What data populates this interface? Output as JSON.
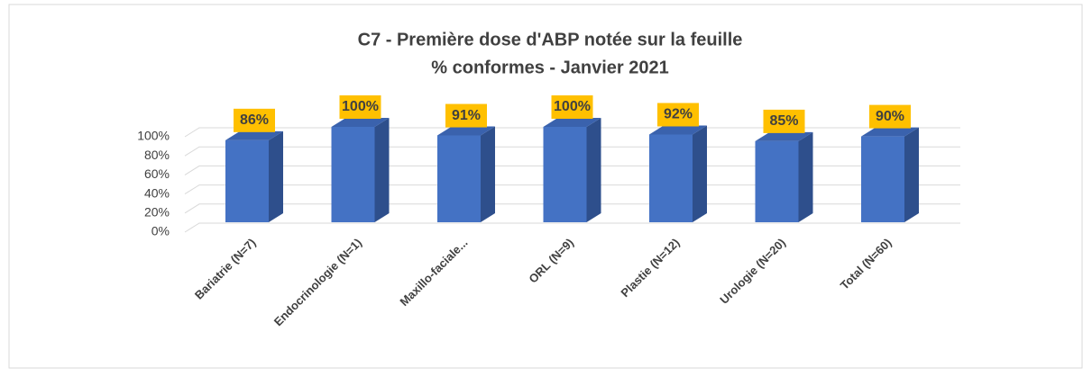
{
  "chart_data": {
    "type": "bar3d",
    "title": "C7 - Première dose d'ABP notée sur la feuille",
    "subtitle": "% conformes - Janvier 2021",
    "categories": [
      "Bariatrie (N=7)",
      "Endocrinologie (N=1)",
      "Maxillo-faciale...",
      "ORL (N=9)",
      "Plastie (N=12)",
      "Urologie (N=20)",
      "Total (N=60)"
    ],
    "values": [
      86,
      100,
      91,
      100,
      92,
      85,
      90
    ],
    "value_labels": [
      "86%",
      "100%",
      "91%",
      "100%",
      "92%",
      "85%",
      "90%"
    ],
    "color": "#4472c4",
    "label_color": "#ffc000",
    "ylim": [
      0,
      100
    ],
    "yticks": [
      {
        "value": 0,
        "label": "0%"
      },
      {
        "value": 20,
        "label": "20%"
      },
      {
        "value": 40,
        "label": "40%"
      },
      {
        "value": 60,
        "label": "60%"
      },
      {
        "value": 80,
        "label": "80%"
      },
      {
        "value": 100,
        "label": "100%"
      }
    ],
    "grid": true
  }
}
